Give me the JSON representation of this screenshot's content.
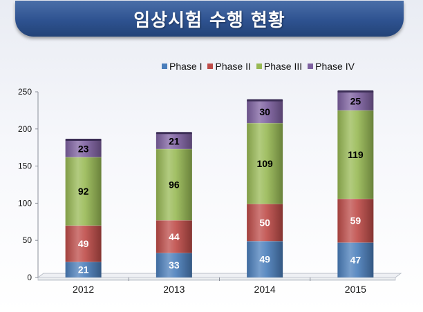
{
  "header": {
    "title": "임상시험 수행 현황"
  },
  "colors": {
    "banner": "#2e5290",
    "Phase I": "#4a7ebb",
    "Phase II": "#be4b48",
    "Phase III": "#98b954",
    "Phase IV": "#7d60a0"
  },
  "chart_data": {
    "type": "bar",
    "stacked": true,
    "title": "",
    "xlabel": "",
    "ylabel": "",
    "categories": [
      "2012",
      "2013",
      "2014",
      "2015"
    ],
    "ylim": [
      0,
      250
    ],
    "yticks": [
      0,
      50,
      100,
      150,
      200,
      250
    ],
    "grid": false,
    "legend_position": "top-right",
    "series": [
      {
        "name": "Phase I",
        "values": [
          21,
          33,
          49,
          47
        ]
      },
      {
        "name": "Phase II",
        "values": [
          49,
          44,
          50,
          59
        ]
      },
      {
        "name": "Phase III",
        "values": [
          92,
          96,
          109,
          119
        ]
      },
      {
        "name": "Phase IV",
        "values": [
          23,
          21,
          30,
          25
        ]
      }
    ]
  }
}
